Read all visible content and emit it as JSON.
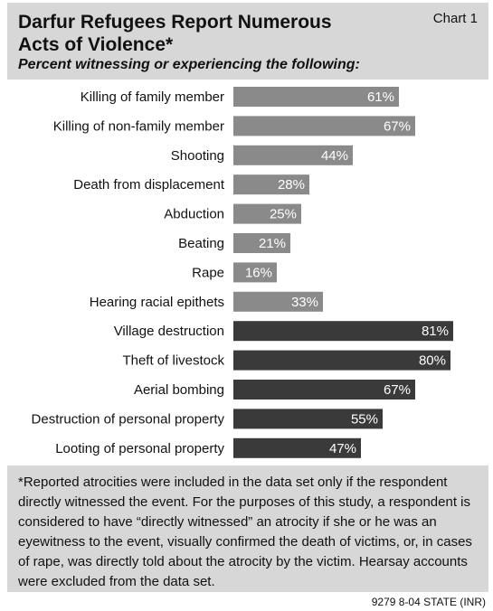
{
  "header": {
    "title_line1": "Darfur Refugees Report Numerous",
    "title_line2": "Acts of Violence*",
    "chart_label": "Chart 1",
    "subtitle": "Percent witnessing or experiencing the following:"
  },
  "chart_data": {
    "type": "bar",
    "orientation": "horizontal",
    "categories": [
      "Killing of family member",
      "Killing of non-family member",
      "Shooting",
      "Death from displacement",
      "Abduction",
      "Beating",
      "Rape",
      "Hearing racial epithets",
      "Village destruction",
      "Theft of livestock",
      "Aerial bombing",
      "Destruction of personal property",
      "Looting of personal property"
    ],
    "values": [
      61,
      67,
      44,
      28,
      25,
      21,
      16,
      33,
      81,
      80,
      67,
      55,
      47
    ],
    "value_labels": [
      "61%",
      "67%",
      "44%",
      "28%",
      "25%",
      "21%",
      "16%",
      "33%",
      "81%",
      "80%",
      "67%",
      "55%",
      "47%"
    ],
    "group_sizes": [
      8,
      5
    ],
    "group_colors": [
      "#8a8a8a",
      "#3a3a3a"
    ],
    "xlim": [
      0,
      100
    ],
    "grid": false,
    "title": "Darfur Refugees Report Numerous Acts of Violence*",
    "subtitle": "Percent witnessing or experiencing the following:"
  },
  "footnote": {
    "text": "*Reported atrocities were included in the data set only if the respondent directly witnessed the event. For the purposes of this study, a respondent is considered to have “directly witnessed” an atrocity if she or he was an eyewitness to the event, visually confirmed the death of victims, or, in cases of rape, was directly told about the atrocity by the victim. Hearsay accounts were excluded from the data set."
  },
  "source": "9279 8-04 STATE (INR)"
}
